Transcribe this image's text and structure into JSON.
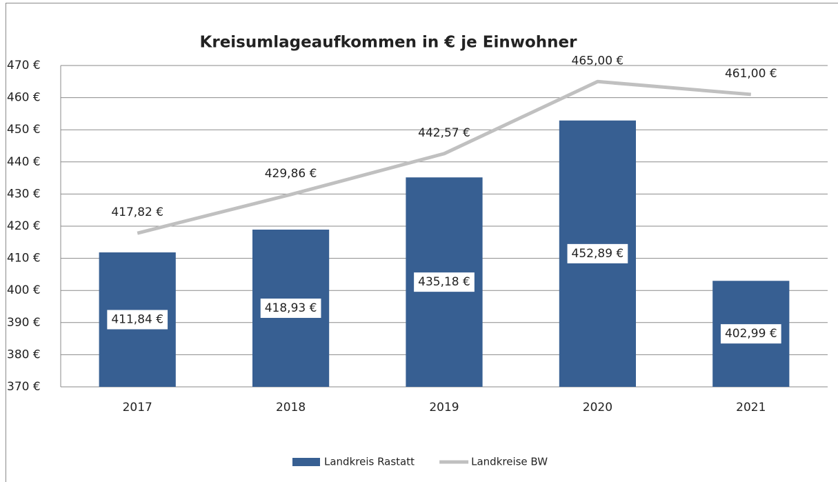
{
  "chart_data": {
    "type": "bar",
    "title": "Kreisumlageaufkommen in € je Einwohner",
    "categories": [
      "2017",
      "2018",
      "2019",
      "2020",
      "2021"
    ],
    "series": [
      {
        "name": "Landkreis Rastatt",
        "type": "bar",
        "color": "#375f92",
        "values": [
          411.84,
          418.93,
          435.18,
          452.89,
          402.99
        ],
        "value_labels": [
          "411,84 €",
          "418,93 €",
          "435,18 €",
          "452,89 €",
          "402,99 €"
        ]
      },
      {
        "name": "Landkreise BW",
        "type": "line",
        "color": "#c0c0c0",
        "values": [
          417.82,
          429.86,
          442.57,
          465.0,
          461.0
        ],
        "value_labels": [
          "417,82 €",
          "429,86 €",
          "442,57 €",
          "465,00 €",
          "461,00 €"
        ]
      }
    ],
    "ylim": [
      370,
      470
    ],
    "yticks": [
      {
        "value": 370,
        "label": "370 €"
      },
      {
        "value": 380,
        "label": "380 €"
      },
      {
        "value": 390,
        "label": "390 €"
      },
      {
        "value": 400,
        "label": "400 €"
      },
      {
        "value": 410,
        "label": "410 €"
      },
      {
        "value": 420,
        "label": "420 €"
      },
      {
        "value": 430,
        "label": "430 €"
      },
      {
        "value": 440,
        "label": "440 €"
      },
      {
        "value": 450,
        "label": "450 €"
      },
      {
        "value": 460,
        "label": "460 €"
      },
      {
        "value": 470,
        "label": "470 €"
      }
    ],
    "grid": true,
    "legend": "bottom"
  }
}
